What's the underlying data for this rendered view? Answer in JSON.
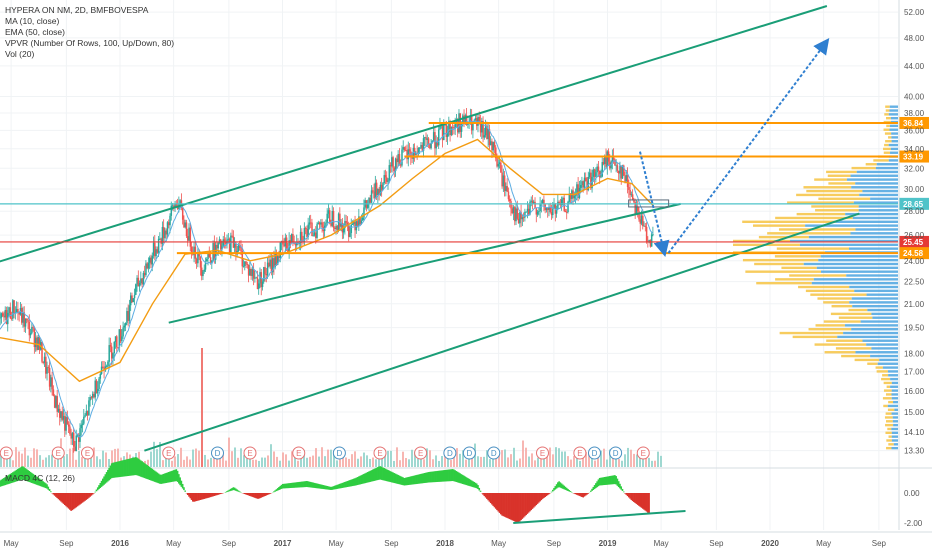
{
  "indicators": {
    "symbol": "HYPERA ON NM, 2D, BMFBOVESPA",
    "ma": "MA (10, close)",
    "ema": "EMA (50, close)",
    "vpvr": "VPVR (Number Of Rows, 100, Up/Down, 80)",
    "vol": "Vol (20)",
    "macd": "MACD 4C (12, 26)"
  },
  "colors": {
    "up": "#26a69a",
    "down": "#ef5350",
    "ema": "#f39c12",
    "ma": "#5dade2",
    "channel": "#1a9e77",
    "orange_level": "#ff9800",
    "red_level": "#e53935",
    "cyan_level": "#4fc3c9",
    "projection": "#2f7fd0",
    "macd_up": "#2ecc40",
    "macd_down": "#d9332b",
    "vpvr_up": "#4aa3df",
    "vpvr_down": "#f6c342"
  },
  "chart_data": {
    "type": "candlestick",
    "title": "HYPERA ON NM, 2D, BMFBOVESPA",
    "ylim": [
      13.0,
      53.0
    ],
    "y_scale": "log",
    "price_ticks": [
      "52.00",
      "48.00",
      "44.00",
      "40.00",
      "38.00",
      "36.00",
      "34.00",
      "32.00",
      "30.00",
      "28.00",
      "26.00",
      "24.00",
      "22.50",
      "21.00",
      "19.50",
      "18.00",
      "17.00",
      "16.00",
      "15.00",
      "14.10",
      "13.30"
    ],
    "price_tick_values": [
      52,
      48,
      44,
      40,
      38,
      36,
      34,
      32,
      30,
      28,
      26,
      24,
      22.5,
      21,
      19.5,
      18,
      17,
      16,
      15,
      14.1,
      13.3
    ],
    "time_labels": [
      "May",
      "Sep",
      "2016",
      "May",
      "Sep",
      "2017",
      "May",
      "Sep",
      "2018",
      "May",
      "Sep",
      "2019",
      "May",
      "Sep",
      "2020",
      "May",
      "Sep"
    ],
    "levels": [
      {
        "label": "36.84",
        "value": 36.84,
        "color": "orange"
      },
      {
        "label": "33.19",
        "value": 33.19,
        "color": "orange"
      },
      {
        "label": "28.65",
        "value": 28.65,
        "color": "cyan"
      },
      {
        "label": "25.45",
        "value": 25.45,
        "color": "red"
      },
      {
        "label": "24.58",
        "value": 24.58,
        "color": "orange"
      }
    ],
    "price_path": [
      [
        2015.2,
        19.0
      ],
      [
        2015.35,
        20.8
      ],
      [
        2015.5,
        18.5
      ],
      [
        2015.6,
        15.5
      ],
      [
        2015.72,
        13.5
      ],
      [
        2015.8,
        15.0
      ],
      [
        2015.9,
        17.5
      ],
      [
        2016.0,
        19.0
      ],
      [
        2016.1,
        22.0
      ],
      [
        2016.2,
        24.5
      ],
      [
        2016.28,
        26.5
      ],
      [
        2016.35,
        29.0
      ],
      [
        2016.42,
        26.0
      ],
      [
        2016.5,
        23.5
      ],
      [
        2016.55,
        24.5
      ],
      [
        2016.62,
        25.0
      ],
      [
        2016.7,
        25.5
      ],
      [
        2016.78,
        23.5
      ],
      [
        2016.85,
        22.5
      ],
      [
        2016.92,
        23.5
      ],
      [
        2017.0,
        25.0
      ],
      [
        2017.1,
        26.0
      ],
      [
        2017.2,
        26.5
      ],
      [
        2017.3,
        27.5
      ],
      [
        2017.4,
        26.5
      ],
      [
        2017.5,
        28.0
      ],
      [
        2017.6,
        30.5
      ],
      [
        2017.7,
        33.0
      ],
      [
        2017.8,
        33.5
      ],
      [
        2017.9,
        34.5
      ],
      [
        2018.0,
        36.0
      ],
      [
        2018.1,
        37.0
      ],
      [
        2018.2,
        36.5
      ],
      [
        2018.28,
        35.0
      ],
      [
        2018.35,
        31.0
      ],
      [
        2018.45,
        27.0
      ],
      [
        2018.55,
        28.5
      ],
      [
        2018.65,
        28.0
      ],
      [
        2018.75,
        28.5
      ],
      [
        2018.85,
        30.5
      ],
      [
        2018.95,
        31.5
      ],
      [
        2019.0,
        33.0
      ],
      [
        2019.08,
        32.0
      ],
      [
        2019.15,
        29.5
      ],
      [
        2019.22,
        26.5
      ],
      [
        2019.28,
        25.5
      ]
    ],
    "ema_path": [
      [
        2015.2,
        19.0
      ],
      [
        2015.5,
        18.5
      ],
      [
        2015.75,
        16.5
      ],
      [
        2016.0,
        17.5
      ],
      [
        2016.2,
        21.0
      ],
      [
        2016.4,
        24.5
      ],
      [
        2016.6,
        24.8
      ],
      [
        2016.8,
        24.0
      ],
      [
        2017.0,
        24.5
      ],
      [
        2017.3,
        26.0
      ],
      [
        2017.6,
        28.5
      ],
      [
        2017.8,
        31.0
      ],
      [
        2018.0,
        33.5
      ],
      [
        2018.2,
        35.0
      ],
      [
        2018.4,
        32.0
      ],
      [
        2018.6,
        29.5
      ],
      [
        2018.8,
        29.5
      ],
      [
        2019.0,
        31.0
      ],
      [
        2019.15,
        30.5
      ],
      [
        2019.28,
        28.5
      ]
    ],
    "projection": {
      "from": [
        2019.2,
        28.65
      ],
      "down_to": [
        2019.35,
        24.58
      ],
      "up_to": [
        2020.35,
        47.5
      ]
    },
    "channel_upper": [
      [
        2015.0,
        23.0
      ],
      [
        2020.35,
        53.0
      ]
    ],
    "channel_lower": [
      [
        2016.3,
        19.8
      ],
      [
        2019.45,
        28.65
      ]
    ],
    "channel_bottom": [
      [
        2016.15,
        13.3
      ],
      [
        2020.55,
        27.8
      ]
    ],
    "macd": {
      "ticks": [
        "0.00",
        "-2.00"
      ],
      "tick_values": [
        0,
        -2
      ]
    }
  },
  "vpvr_rows": "profile"
}
